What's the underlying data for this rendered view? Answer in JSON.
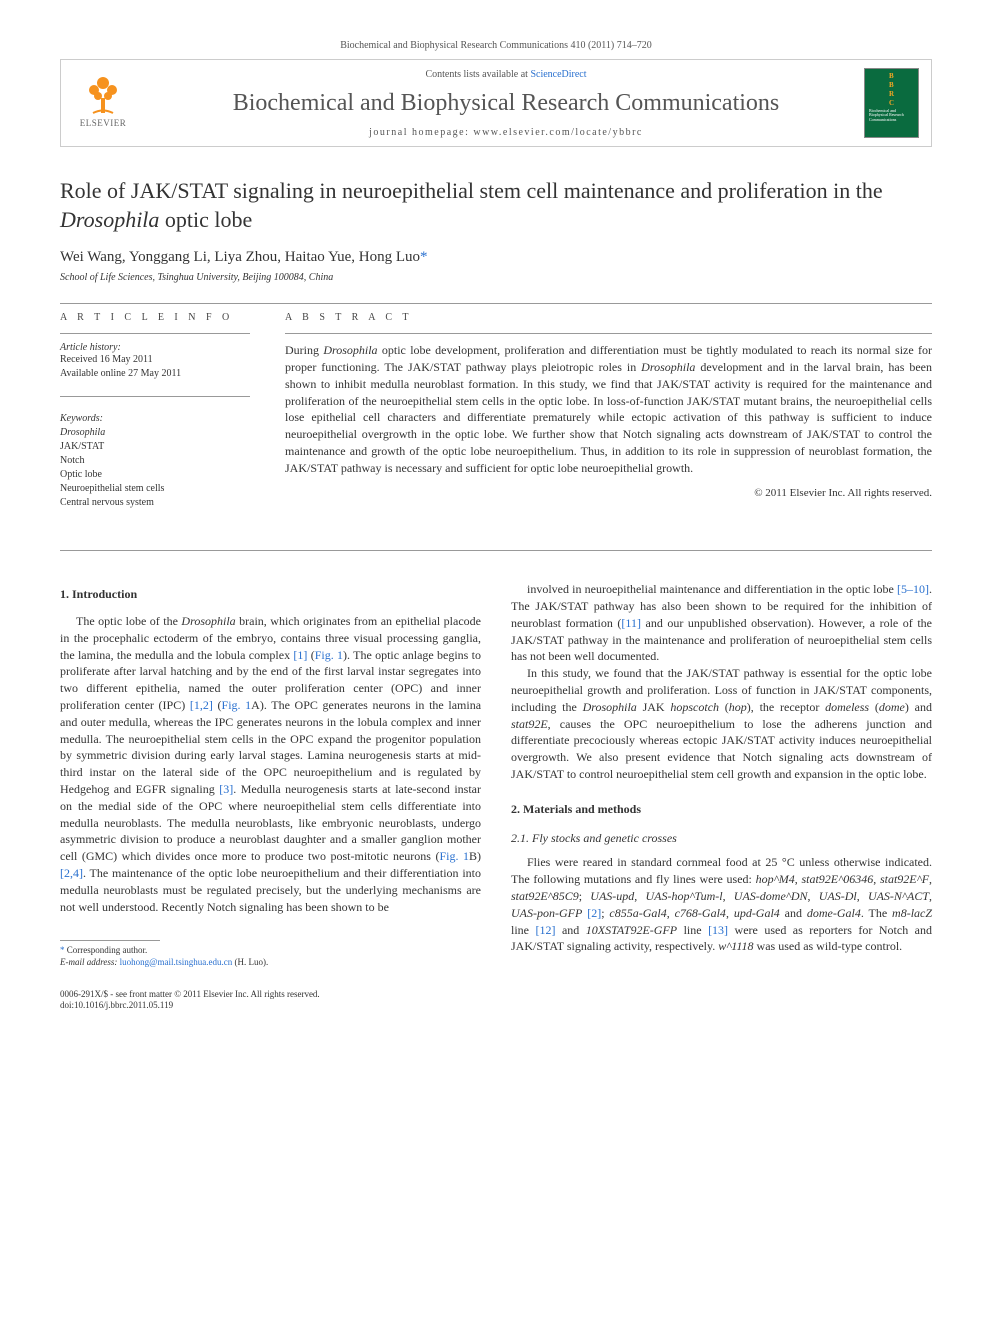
{
  "header": {
    "reference": "Biochemical and Biophysical Research Communications 410 (2011) 714–720",
    "contents_prefix": "Contents lists available at ",
    "contents_link": "ScienceDirect",
    "journal_name": "Biochemical and Biophysical Research Communications",
    "homepage_prefix": "journal homepage: ",
    "homepage_url": "www.elsevier.com/locate/ybbrc",
    "elsevier_label": "ELSEVIER",
    "cover_bbrc_letters": [
      "B",
      "B",
      "R",
      "C"
    ],
    "cover_title": "Biochemical and Biophysical Research Communications"
  },
  "article": {
    "title_pre": "Role of JAK/STAT signaling in neuroepithelial stem cell maintenance and proliferation in the ",
    "title_italic": "Drosophila",
    "title_post": " optic lobe",
    "authors": "Wei Wang, Yonggang Li, Liya Zhou, Haitao Yue, Hong Luo",
    "corr_mark": "*",
    "affiliation": "School of Life Sciences, Tsinghua University, Beijing 100084, China"
  },
  "info": {
    "heading": "A R T I C L E   I N F O",
    "history_label": "Article history:",
    "received": "Received 16 May 2011",
    "available": "Available online 27 May 2011",
    "keywords_label": "Keywords:",
    "keywords": [
      "Drosophila",
      "JAK/STAT",
      "Notch",
      "Optic lobe",
      "Neuroepithelial stem cells",
      "Central nervous system"
    ]
  },
  "abstract": {
    "heading": "A B S T R A C T",
    "body_parts": [
      {
        "t": "text",
        "v": "During "
      },
      {
        "t": "em",
        "v": "Drosophila"
      },
      {
        "t": "text",
        "v": " optic lobe development, proliferation and differentiation must be tightly modulated to reach its normal size for proper functioning. The JAK/STAT pathway plays pleiotropic roles in "
      },
      {
        "t": "em",
        "v": "Drosophila"
      },
      {
        "t": "text",
        "v": " development and in the larval brain, has been shown to inhibit medulla neuroblast formation. In this study, we find that JAK/STAT activity is required for the maintenance and proliferation of the neuroepithelial stem cells in the optic lobe. In loss-of-function JAK/STAT mutant brains, the neuroepithelial cells lose epithelial cell characters and differentiate prematurely while ectopic activation of this pathway is sufficient to induce neuroepithelial overgrowth in the optic lobe. We further show that Notch signaling acts downstream of JAK/STAT to control the maintenance and growth of the optic lobe neuroepithelium. Thus, in addition to its role in suppression of neuroblast formation, the JAK/STAT pathway is necessary and sufficient for optic lobe neuroepithelial growth."
      }
    ],
    "copyright": "© 2011 Elsevier Inc. All rights reserved."
  },
  "body": {
    "intro_heading": "1. Introduction",
    "col1_paras": [
      [
        {
          "t": "text",
          "v": "The optic lobe of the "
        },
        {
          "t": "em",
          "v": "Drosophila"
        },
        {
          "t": "text",
          "v": " brain, which originates from an epithelial placode in the procephalic ectoderm of the embryo, contains three visual processing ganglia, the lamina, the medulla and the lobula complex "
        },
        {
          "t": "ref",
          "v": "[1]"
        },
        {
          "t": "text",
          "v": " ("
        },
        {
          "t": "ref",
          "v": "Fig. 1"
        },
        {
          "t": "text",
          "v": "). The optic anlage begins to proliferate after larval hatching and by the end of the first larval instar segregates into two different epithelia, named the outer proliferation center (OPC) and inner proliferation center (IPC) "
        },
        {
          "t": "ref",
          "v": "[1,2]"
        },
        {
          "t": "text",
          "v": " ("
        },
        {
          "t": "ref",
          "v": "Fig. 1"
        },
        {
          "t": "text",
          "v": "A). The OPC generates neurons in the lamina and outer medulla, whereas the IPC generates neurons in the lobula complex and inner medulla. The neuroepithelial stem cells in the OPC expand the progenitor population by symmetric division during early larval stages. Lamina neurogenesis starts at mid-third instar on the lateral side of the OPC neuroepithelium and is regulated by Hedgehog and EGFR signaling "
        },
        {
          "t": "ref",
          "v": "[3]"
        },
        {
          "t": "text",
          "v": ". Medulla neurogenesis starts at late-second instar on the medial side of the OPC where neuroepithelial stem cells differentiate into medulla neuroblasts. The medulla neuroblasts, like embryonic neuroblasts, undergo asymmetric division to produce a neuroblast daughter and a smaller ganglion mother cell (GMC) which divides once more to produce two post-mitotic neurons ("
        },
        {
          "t": "ref",
          "v": "Fig. 1"
        },
        {
          "t": "text",
          "v": "B) "
        },
        {
          "t": "ref",
          "v": "[2,4]"
        },
        {
          "t": "text",
          "v": ". The maintenance of the optic lobe neuroepithelium and their differentiation into medulla neuroblasts must be regulated precisely, but the underlying mechanisms are not well understood. Recently Notch signaling has been shown to be"
        }
      ]
    ],
    "col2_paras": [
      [
        {
          "t": "text",
          "v": "involved in neuroepithelial maintenance and differentiation in the optic lobe "
        },
        {
          "t": "ref",
          "v": "[5–10]"
        },
        {
          "t": "text",
          "v": ". The JAK/STAT pathway has also been shown to be required for the inhibition of neuroblast formation ("
        },
        {
          "t": "ref",
          "v": "[11]"
        },
        {
          "t": "text",
          "v": " and our unpublished observation). However, a role of the JAK/STAT pathway in the maintenance and proliferation of neuroepithelial stem cells has not been well documented."
        }
      ],
      [
        {
          "t": "text",
          "v": "In this study, we found that the JAK/STAT pathway is essential for the optic lobe neuroepithelial growth and proliferation. Loss of function in JAK/STAT components, including the "
        },
        {
          "t": "em",
          "v": "Drosophila"
        },
        {
          "t": "text",
          "v": " JAK "
        },
        {
          "t": "em",
          "v": "hopscotch"
        },
        {
          "t": "text",
          "v": " ("
        },
        {
          "t": "em",
          "v": "hop"
        },
        {
          "t": "text",
          "v": "), the receptor "
        },
        {
          "t": "em",
          "v": "domeless"
        },
        {
          "t": "text",
          "v": " ("
        },
        {
          "t": "em",
          "v": "dome"
        },
        {
          "t": "text",
          "v": ") and "
        },
        {
          "t": "em",
          "v": "stat92E"
        },
        {
          "t": "text",
          "v": ", causes the OPC neuroepithelium to lose the adherens junction and differentiate precociously whereas ectopic JAK/STAT activity induces neuroepithelial overgrowth. We also present evidence that Notch signaling acts downstream of JAK/STAT to control neuroepithelial stem cell growth and expansion in the optic lobe."
        }
      ]
    ],
    "methods_heading": "2. Materials and methods",
    "methods_sub": "2.1. Fly stocks and genetic crosses",
    "methods_paras": [
      [
        {
          "t": "text",
          "v": "Flies were reared in standard cornmeal food at 25 °C unless otherwise indicated. The following mutations and fly lines were used: "
        },
        {
          "t": "em",
          "v": "hop^M4"
        },
        {
          "t": "text",
          "v": ", "
        },
        {
          "t": "em",
          "v": "stat92E^06346"
        },
        {
          "t": "text",
          "v": ", "
        },
        {
          "t": "em",
          "v": "stat92E^F"
        },
        {
          "t": "text",
          "v": ", "
        },
        {
          "t": "em",
          "v": "stat92E^85C9"
        },
        {
          "t": "text",
          "v": "; "
        },
        {
          "t": "em",
          "v": "UAS-upd"
        },
        {
          "t": "text",
          "v": ", "
        },
        {
          "t": "em",
          "v": "UAS-hop^Tum-l"
        },
        {
          "t": "text",
          "v": ", "
        },
        {
          "t": "em",
          "v": "UAS-dome^DN"
        },
        {
          "t": "text",
          "v": ", "
        },
        {
          "t": "em",
          "v": "UAS-Dl"
        },
        {
          "t": "text",
          "v": ", "
        },
        {
          "t": "em",
          "v": "UAS-N^ACT"
        },
        {
          "t": "text",
          "v": ", "
        },
        {
          "t": "em",
          "v": "UAS-pon-GFP"
        },
        {
          "t": "text",
          "v": " "
        },
        {
          "t": "ref",
          "v": "[2]"
        },
        {
          "t": "text",
          "v": "; "
        },
        {
          "t": "em",
          "v": "c855a-Gal4"
        },
        {
          "t": "text",
          "v": ", "
        },
        {
          "t": "em",
          "v": "c768-Gal4"
        },
        {
          "t": "text",
          "v": ", "
        },
        {
          "t": "em",
          "v": "upd-Gal4"
        },
        {
          "t": "text",
          "v": " and "
        },
        {
          "t": "em",
          "v": "dome-Gal4"
        },
        {
          "t": "text",
          "v": ". The "
        },
        {
          "t": "em",
          "v": "m8-lacZ"
        },
        {
          "t": "text",
          "v": " line "
        },
        {
          "t": "ref",
          "v": "[12]"
        },
        {
          "t": "text",
          "v": " and "
        },
        {
          "t": "em",
          "v": "10XSTAT92E-GFP"
        },
        {
          "t": "text",
          "v": " line "
        },
        {
          "t": "ref",
          "v": "[13]"
        },
        {
          "t": "text",
          "v": " were used as reporters for Notch and JAK/STAT signaling activity, respectively. "
        },
        {
          "t": "em",
          "v": "w^1118"
        },
        {
          "t": "text",
          "v": " was used as wild-type control."
        }
      ]
    ]
  },
  "footnote": {
    "corr": "* Corresponding author.",
    "email_label": "E-mail address:",
    "email": "luohong@mail.tsinghua.edu.cn",
    "email_suffix": "(H. Luo)."
  },
  "footer": {
    "line1": "0006-291X/$ - see front matter © 2011 Elsevier Inc. All rights reserved.",
    "line2": "doi:10.1016/j.bbrc.2011.05.119"
  },
  "colors": {
    "link": "#2970cf",
    "elsevier_orange": "#f6921e",
    "cover_green": "#0a6b3f",
    "cover_gold": "#f5a623"
  }
}
